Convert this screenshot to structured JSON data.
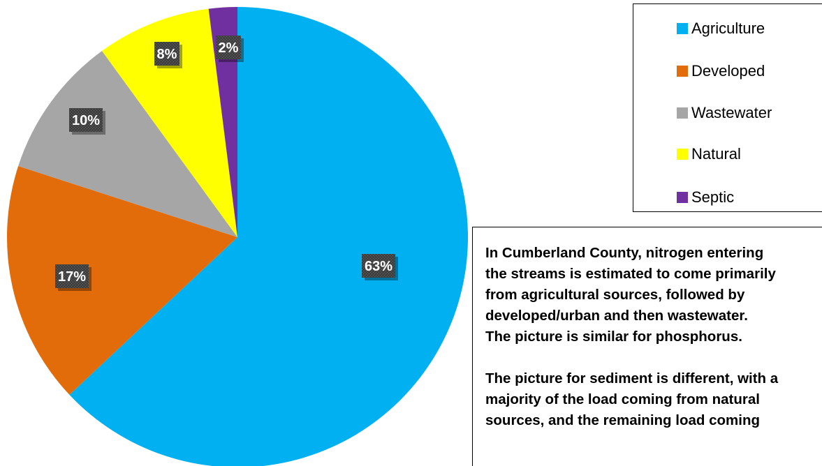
{
  "chart_data": {
    "type": "pie",
    "categories": [
      "Agriculture",
      "Developed",
      "Wastewater",
      "Natural",
      "Septic"
    ],
    "values": [
      63,
      17,
      10,
      8,
      2
    ],
    "data_labels": [
      "63%",
      "17%",
      "10%",
      "8%",
      "2%"
    ],
    "colors": [
      "#00B0F0",
      "#E36C0A",
      "#A6A6A6",
      "#FFFF00",
      "#7030A0"
    ],
    "legend_position": "top-right",
    "start_angle": "12 o'clock",
    "direction": "clockwise"
  },
  "legend": {
    "items": [
      {
        "label": "Agriculture",
        "color": "#00B0F0"
      },
      {
        "label": "Developed",
        "color": "#E36C0A"
      },
      {
        "label": "Wastewater",
        "color": "#A6A6A6"
      },
      {
        "label": "Natural",
        "color": "#FFFF00"
      },
      {
        "label": "Septic",
        "color": "#7030A0"
      }
    ]
  },
  "annotation": {
    "paragraph1_lines": [
      "In Cumberland County, nitrogen entering",
      "the streams is estimated to come primarily",
      "from agricultural sources, followed by",
      "developed/urban and then wastewater.",
      "The picture is similar for phosphorus."
    ],
    "paragraph2_lines": [
      "The picture for sediment is different, with a",
      "majority of the load coming from natural",
      "sources, and the remaining load coming"
    ]
  }
}
